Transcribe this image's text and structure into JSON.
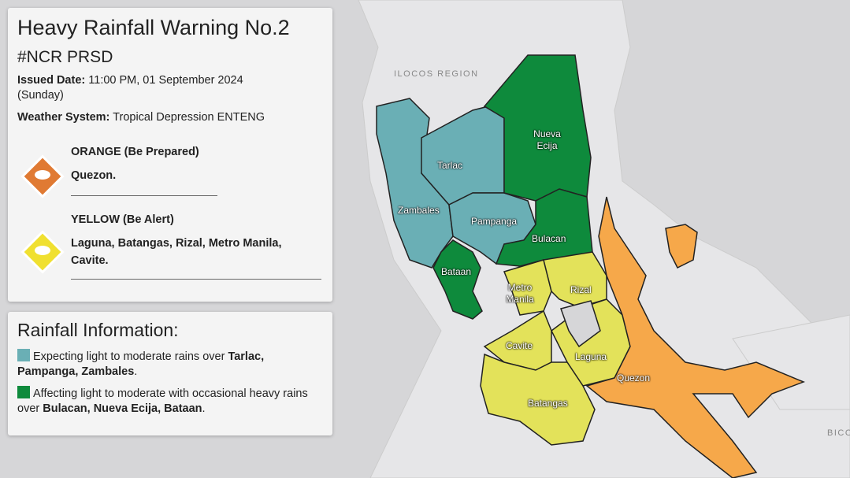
{
  "warning": {
    "title": "Heavy Rainfall Warning No.2",
    "hashtag": "#NCR PRSD",
    "issued_label": "Issued Date:",
    "issued_value": "11:00 PM, 01 September 2024 (Sunday)",
    "system_label": "Weather System:",
    "system_value": "Tropical Depression ENTENG",
    "levels": [
      {
        "name": "ORANGE (Be Prepared)",
        "areas": "Quezon."
      },
      {
        "name": "YELLOW (Be Alert)",
        "areas": "Laguna, Batangas, Rizal, Metro Manila, Cavite."
      }
    ]
  },
  "rainfall": {
    "title": "Rainfall Information:",
    "items": [
      {
        "text": "Expecting light to moderate rains over ",
        "areas": "Tarlac, Pampanga, Zambales",
        "end": "."
      },
      {
        "text": "Affecting light to moderate with occasional heavy rains over ",
        "areas": "Bulacan, Nueva Ecija, Bataan",
        "end": "."
      }
    ]
  },
  "map": {
    "region_labels": [
      "ILOCOS REGION",
      "BICO"
    ],
    "provinces": [
      "Tarlac",
      "Nueva Ecija",
      "Zambales",
      "Pampanga",
      "Bulacan",
      "Bataan",
      "Metro Manila",
      "Rizal",
      "Cavite",
      "Laguna",
      "Quezon",
      "Batangas"
    ]
  }
}
